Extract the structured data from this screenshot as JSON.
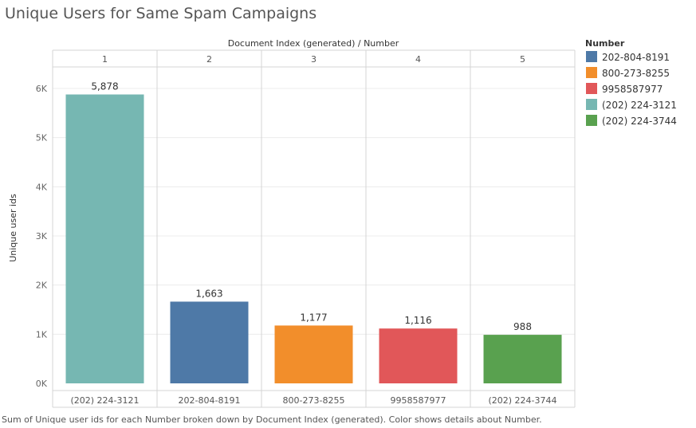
{
  "title": "Unique Users for Same Spam Campaigns",
  "caption": "Sum of Unique user ids for each Number broken down by Document Index (generated).  Color shows details about Number.",
  "chart_data": {
    "type": "bar",
    "column_header": "Document Index (generated)  /  Number",
    "ylabel": "Unique user ids",
    "ylim": [
      0,
      6500
    ],
    "yticks": [
      0,
      1000,
      2000,
      3000,
      4000,
      5000,
      6000
    ],
    "ytick_labels": [
      "0K",
      "1K",
      "2K",
      "3K",
      "4K",
      "5K",
      "6K"
    ],
    "grid": true,
    "legend_position": "right",
    "legend_title": "Number",
    "legend": [
      {
        "name": "202-804-8191",
        "color": "#4e79a7"
      },
      {
        "name": "800-273-8255",
        "color": "#f28e2b"
      },
      {
        "name": "9958587977",
        "color": "#e15759"
      },
      {
        "name": "(202) 224-3121",
        "color": "#76b7b2"
      },
      {
        "name": "(202) 224-3744",
        "color": "#59a14f"
      }
    ],
    "panes": [
      {
        "index": "1",
        "category": "(202) 224-3121",
        "value": 5878,
        "label": "5,878",
        "color": "#76b7b2"
      },
      {
        "index": "2",
        "category": "202-804-8191",
        "value": 1663,
        "label": "1,663",
        "color": "#4e79a7"
      },
      {
        "index": "3",
        "category": "800-273-8255",
        "value": 1177,
        "label": "1,177",
        "color": "#f28e2b"
      },
      {
        "index": "4",
        "category": "9958587977",
        "value": 1116,
        "label": "1,116",
        "color": "#e15759"
      },
      {
        "index": "5",
        "category": "(202) 224-3744",
        "value": 988,
        "label": "988",
        "color": "#59a14f"
      }
    ]
  }
}
